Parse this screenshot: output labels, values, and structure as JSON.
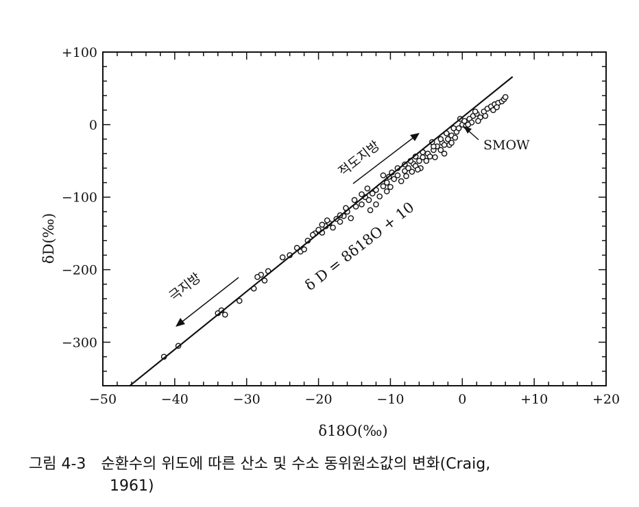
{
  "chart_data": {
    "type": "scatter",
    "xlabel": "δ18O(‰)",
    "ylabel": "δD(‰)",
    "xlim": [
      -50,
      20
    ],
    "ylim": [
      -360,
      100
    ],
    "x_ticks": [
      -50,
      -40,
      -30,
      -20,
      -10,
      0,
      10,
      20
    ],
    "x_tick_labels": [
      "−50",
      "−40",
      "−30",
      "−20",
      "−10",
      "0",
      "+10",
      "+20"
    ],
    "y_ticks": [
      100,
      0,
      -100,
      -200,
      -300
    ],
    "y_tick_labels": [
      "+100",
      "0",
      "−100",
      "−200",
      "−300"
    ],
    "grid": false,
    "line": {
      "equation": "δD = 8δ18O + 10",
      "slope": 8,
      "intercept": 10,
      "x_range": [
        -46.3,
        7
      ]
    },
    "annotations": {
      "equator": "적도지방",
      "polar": "극지방",
      "smow": "SMOW",
      "equation_label": "δ D = 8δ18O + 10"
    },
    "points": [
      [
        -41.5,
        -320
      ],
      [
        -39.5,
        -305
      ],
      [
        -34,
        -260
      ],
      [
        -33.5,
        -256
      ],
      [
        -31,
        -243
      ],
      [
        -29,
        -226
      ],
      [
        -28,
        -207
      ],
      [
        -27.5,
        -215
      ],
      [
        -27,
        -202
      ],
      [
        -25,
        -183
      ],
      [
        -24,
        -180
      ],
      [
        -23,
        -170
      ],
      [
        -22.5,
        -175
      ],
      [
        -21.5,
        -160
      ],
      [
        -20.5,
        -150
      ],
      [
        -20,
        -145
      ],
      [
        -19.5,
        -149
      ],
      [
        -19,
        -140
      ],
      [
        -18.5,
        -136
      ],
      [
        -18,
        -142
      ],
      [
        -17.5,
        -130
      ],
      [
        -17,
        -134
      ],
      [
        -16.5,
        -126
      ],
      [
        -16,
        -120
      ],
      [
        -15.5,
        -129
      ],
      [
        -15,
        -104
      ],
      [
        -14.8,
        -113
      ],
      [
        -14,
        -110
      ],
      [
        -13.5,
        -100
      ],
      [
        -13,
        -104
      ],
      [
        -12.5,
        -95
      ],
      [
        -12,
        -110
      ],
      [
        -12,
        -90
      ],
      [
        -11.5,
        -99
      ],
      [
        -11,
        -85
      ],
      [
        -10.5,
        -92
      ],
      [
        -10.5,
        -80
      ],
      [
        -10,
        -86
      ],
      [
        -9.5,
        -75
      ],
      [
        -9,
        -70
      ],
      [
        -8.5,
        -78
      ],
      [
        -8,
        -64
      ],
      [
        -7.8,
        -71
      ],
      [
        -7.5,
        -60
      ],
      [
        -7,
        -65
      ],
      [
        -6.8,
        -54
      ],
      [
        -6.5,
        -57
      ],
      [
        -6,
        -50
      ],
      [
        -5.8,
        -60
      ],
      [
        -5.5,
        -45
      ],
      [
        -5,
        -50
      ],
      [
        -4.8,
        -40
      ],
      [
        -4.5,
        -44
      ],
      [
        -4,
        -35
      ],
      [
        -3.8,
        -45
      ],
      [
        -3.5,
        -30
      ],
      [
        -3,
        -35
      ],
      [
        -2.8,
        -25
      ],
      [
        -2.5,
        -28
      ],
      [
        -2,
        -20
      ],
      [
        -1.8,
        -28
      ],
      [
        -1.5,
        -15
      ],
      [
        -1,
        -18
      ],
      [
        -0.8,
        -10
      ],
      [
        -0.5,
        -5
      ],
      [
        0,
        0
      ],
      [
        0.3,
        5
      ],
      [
        0.5,
        -2
      ],
      [
        1,
        8
      ],
      [
        1.3,
        3
      ],
      [
        1.5,
        12
      ],
      [
        2,
        15
      ],
      [
        2.5,
        10
      ],
      [
        3,
        18
      ],
      [
        3.5,
        22
      ],
      [
        4,
        25
      ],
      [
        4.3,
        20
      ],
      [
        4.5,
        28
      ],
      [
        5,
        30
      ],
      [
        5.5,
        32
      ],
      [
        5.8,
        35
      ],
      [
        6,
        38
      ],
      [
        -33,
        -262
      ],
      [
        -28.5,
        -210
      ],
      [
        -22,
        -172
      ],
      [
        -19.5,
        -138
      ],
      [
        -17,
        -125
      ],
      [
        -14,
        -96
      ],
      [
        -11,
        -70
      ],
      [
        -9,
        -60
      ],
      [
        -8,
        -55
      ],
      [
        -6.5,
        -44
      ],
      [
        -5.5,
        -38
      ],
      [
        -4,
        -30
      ],
      [
        -3,
        -20
      ],
      [
        -2.2,
        -12
      ],
      [
        -1.2,
        -5
      ],
      [
        0.8,
        0
      ],
      [
        2.2,
        5
      ],
      [
        3.2,
        12
      ],
      [
        -18.8,
        -132
      ],
      [
        -16.2,
        -115
      ],
      [
        -13.2,
        -88
      ],
      [
        -10.2,
        -72
      ],
      [
        -7.2,
        -50
      ],
      [
        -6.2,
        -62
      ],
      [
        -2.5,
        -40
      ],
      [
        -1.5,
        -25
      ],
      [
        1.8,
        18
      ],
      [
        4.8,
        24
      ],
      [
        -20.8,
        -152
      ],
      [
        -12.8,
        -118
      ],
      [
        -9.8,
        -66
      ],
      [
        -4.2,
        -24
      ],
      [
        -0.3,
        8
      ]
    ]
  },
  "caption": {
    "number": "그림 4-3",
    "text": "순환수의 위도에 따른 산소 및 수소 동위원소값의 변화(Craig,",
    "text2": "1961)"
  }
}
